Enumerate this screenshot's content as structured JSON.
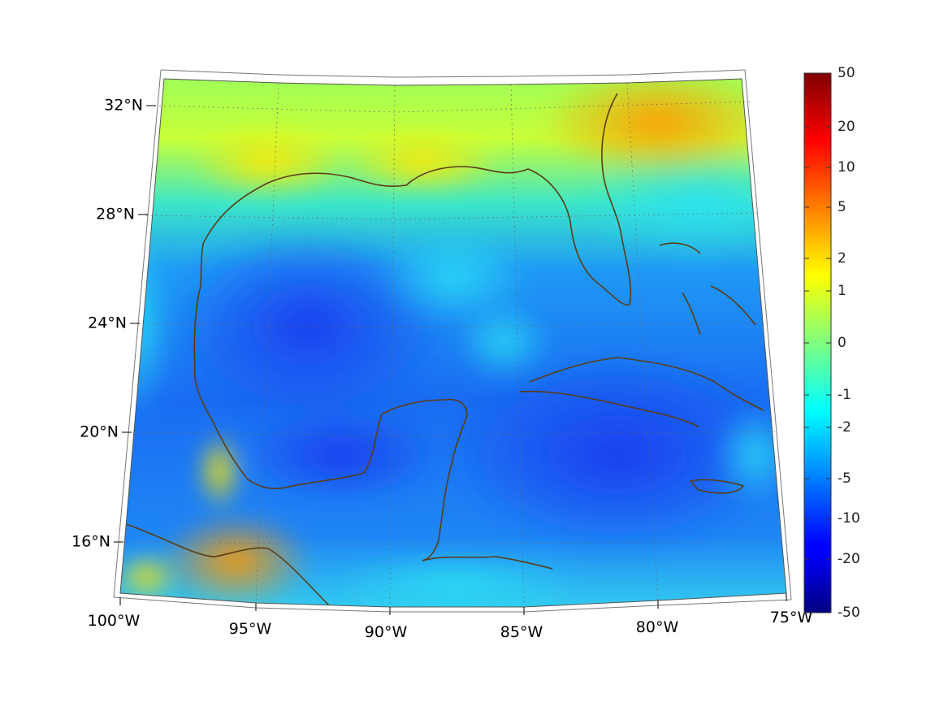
{
  "map": {
    "projection": "conic",
    "lon_labels": [
      "100°W",
      "95°W",
      "90°W",
      "85°W",
      "80°W",
      "75°W"
    ],
    "lat_labels": [
      "16°N",
      "20°N",
      "24°N",
      "28°N",
      "32°N"
    ],
    "coastline_color": "#5a3c14",
    "gridline_style": "dotted"
  },
  "colorbar": {
    "colormap": "jet",
    "ticks": [
      "50",
      "20",
      "10",
      "5",
      "2",
      "1",
      "0",
      "-1",
      "-2",
      "-5",
      "-10",
      "-20",
      "-50"
    ]
  }
}
